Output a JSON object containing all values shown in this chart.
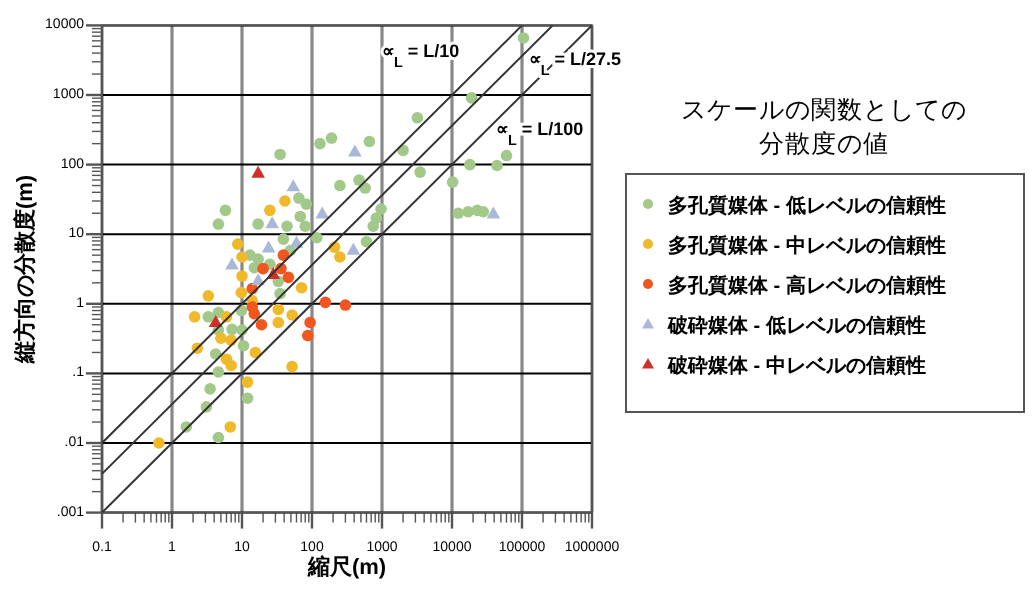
{
  "chart_data": {
    "type": "scatter",
    "title": "スケールの関数としての分散度の値",
    "xlabel": "縮尺(m)",
    "ylabel": "縦方向の分散度(m)",
    "log": "xy",
    "xlim": [
      0.1,
      1000000
    ],
    "ylim": [
      0.001,
      10000
    ],
    "xticks": [
      0.1,
      1,
      10,
      100,
      1000,
      10000,
      100000,
      1000000
    ],
    "yticks": [
      {
        "value": 0.001,
        "label": ".001"
      },
      {
        "value": 0.01,
        "label": ".01"
      },
      {
        "value": 0.1,
        "label": ".1"
      },
      1,
      10,
      100,
      1000,
      10000
    ],
    "grid": true,
    "legend": "right",
    "series": [
      {
        "name": "多孔質媒体 - 低レベルの信頼性",
        "color": "#a3c98a",
        "marker": "circle",
        "x": [
          35,
          130,
          190,
          660,
          250,
          470,
          575,
          65,
          83,
          5.8,
          4.6,
          17,
          44,
          68,
          80,
          117,
          39,
          49,
          970,
          830,
          750,
          600,
          13,
          17,
          15,
          25,
          33,
          35,
          9.8,
          4.6,
          3.3,
          4.6,
          7.2,
          10,
          10.5,
          4.2,
          4.6,
          3.5,
          3.1,
          12,
          1.6,
          4.6,
          105000,
          19000,
          3200,
          2000,
          3500,
          10200,
          18000,
          44000,
          60000,
          12300,
          17000,
          23000,
          28000
        ],
        "values": [
          140,
          200,
          240,
          215,
          50,
          60,
          46,
          33,
          27,
          22,
          14,
          14,
          13,
          18,
          13,
          8.9,
          8.5,
          5.8,
          23,
          17,
          13,
          7.8,
          5,
          4.4,
          3.3,
          3.7,
          2.1,
          1.4,
          0.8,
          0.75,
          0.65,
          0.42,
          0.43,
          0.42,
          0.25,
          0.19,
          0.105,
          0.06,
          0.033,
          0.044,
          0.017,
          0.012,
          6600,
          910,
          470,
          160,
          78,
          56,
          100,
          97,
          135,
          20,
          21,
          22,
          21
        ]
      },
      {
        "name": "多孔質媒体 - 中レベルの信頼性",
        "color": "#f0b92a",
        "marker": "circle",
        "x": [
          41,
          25,
          8.7,
          10,
          10,
          9.8,
          210,
          250,
          71,
          3.3,
          14,
          2.1,
          6,
          33,
          52,
          33,
          5,
          7,
          2.3,
          15.5,
          6,
          7,
          52,
          12,
          6.8,
          0.65
        ],
        "values": [
          30,
          22,
          7.2,
          4.7,
          2.5,
          1.45,
          6.5,
          4.7,
          1.7,
          1.3,
          1.1,
          0.65,
          0.65,
          0.83,
          0.69,
          0.54,
          0.32,
          0.3,
          0.23,
          0.2,
          0.16,
          0.13,
          0.125,
          0.075,
          0.017,
          0.01
        ]
      },
      {
        "name": "多孔質媒体 - 高レベルの信頼性",
        "color": "#f0561e",
        "marker": "circle",
        "x": [
          39,
          20,
          36,
          46,
          14,
          14,
          15,
          19,
          94,
          87,
          155,
          300
        ],
        "values": [
          5,
          3.2,
          3.2,
          2.4,
          1.65,
          0.9,
          0.72,
          0.5,
          0.54,
          0.35,
          1.05,
          0.96
        ]
      },
      {
        "name": "破砕媒体 - 低レベルの信頼性",
        "color": "#a9b8d8",
        "marker": "triangle",
        "x": [
          410,
          54,
          27,
          140,
          60,
          24,
          7.2,
          390,
          17,
          39000
        ],
        "values": [
          155,
          49,
          14.5,
          20,
          7.6,
          6.5,
          3.7,
          6,
          2.2,
          20
        ]
      },
      {
        "name": "破砕媒体 - 中レベルの信頼性",
        "color": "#d0302a",
        "marker": "triangle",
        "x": [
          17,
          28,
          4.2
        ],
        "values": [
          77,
          2.7,
          0.55
        ]
      },
      {
        "type": "line",
        "name": "∝$_{L}$ = L/10",
        "color": "#333333",
        "x": [
          0.1,
          100000
        ],
        "values": [
          0.01,
          10000
        ]
      },
      {
        "type": "line",
        "name": "∝$_{L}$ = L/27.5",
        "color": "#333333",
        "x": [
          0.1,
          275000
        ],
        "values": [
          0.0036,
          10000
        ]
      },
      {
        "type": "line",
        "name": "∝$_{L}$ = L/100",
        "color": "#333333",
        "x": [
          0.1,
          1000000
        ],
        "values": [
          0.001,
          10000
        ]
      }
    ]
  }
}
